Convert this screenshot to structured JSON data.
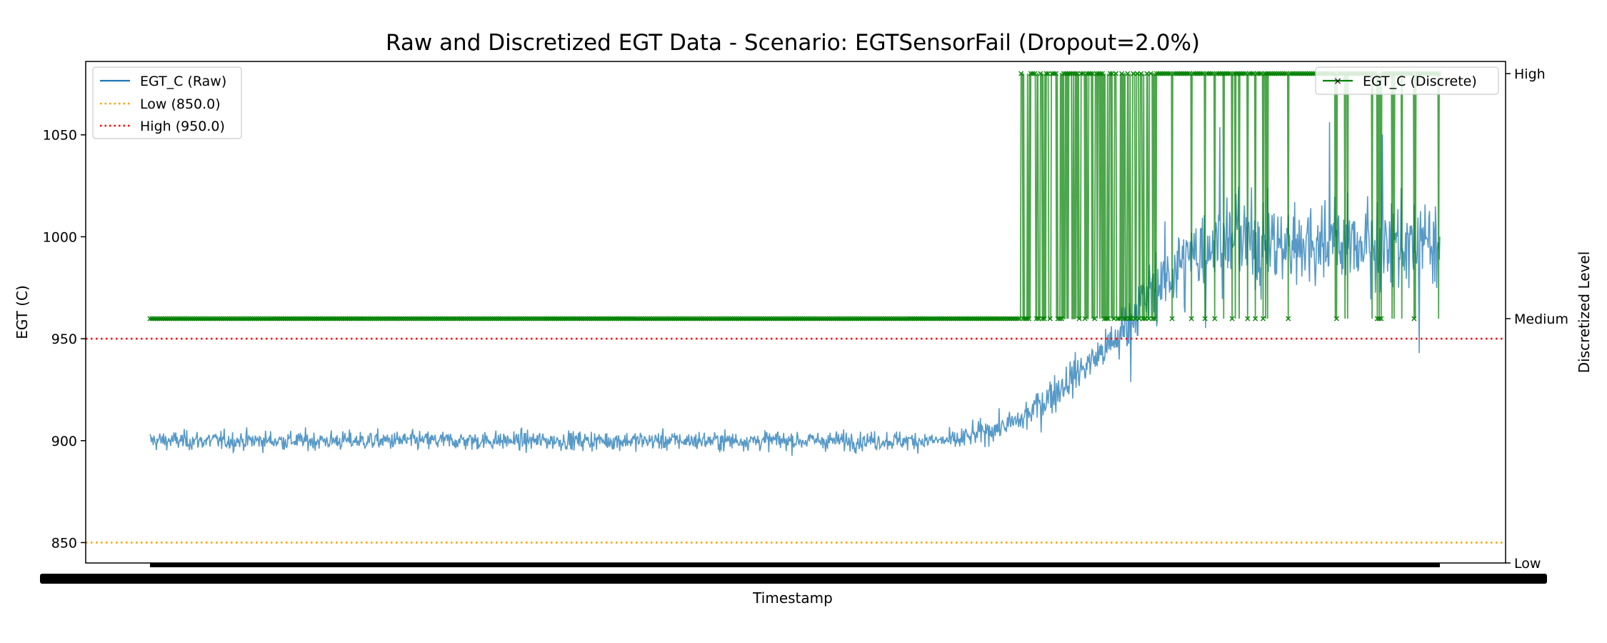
{
  "chart_data": {
    "type": "line",
    "title": "Raw and Discretized EGT Data - Scenario: EGTSensorFail (Dropout=2.0%)",
    "xlabel": "Timestamp",
    "ylabel": "EGT (C)",
    "y2label": "Discretized Level",
    "ylim": [
      840,
      1086
    ],
    "yticks": [
      850,
      900,
      950,
      1000,
      1050
    ],
    "y2ticks": [
      "Low",
      "Medium",
      "High"
    ],
    "grid": false,
    "legend_left": {
      "placement": "upper left",
      "entries": [
        {
          "label": "EGT_C (Raw)",
          "color": "#1f77b4",
          "style": "solid"
        },
        {
          "label": "Low (850.0)",
          "color": "#ff9f00",
          "style": "dotted"
        },
        {
          "label": "High (950.0)",
          "color": "#ff0000",
          "style": "dotted"
        }
      ]
    },
    "legend_right": {
      "placement": "upper right",
      "entries": [
        {
          "label": "EGT_C (Discrete)",
          "color": "#008000",
          "style": "solid",
          "marker": "x"
        }
      ]
    },
    "thresholds": [
      {
        "name": "Low (850.0)",
        "value": 850.0,
        "color": "#ff9f00"
      },
      {
        "name": "High (950.0)",
        "value": 950.0,
        "color": "#ff0000"
      }
    ],
    "x": {
      "n_samples": 2000,
      "tick_labels_overlapping": true
    },
    "series": [
      {
        "name": "EGT_C (Raw)",
        "axis": "left",
        "color": "#1f77b4",
        "segments": [
          {
            "x_from": 0,
            "x_to": 1250,
            "mean_from": 900,
            "mean_to": 900,
            "noise": 4
          },
          {
            "x_from": 1250,
            "x_to": 1350,
            "mean_from": 900,
            "mean_to": 910,
            "noise": 5
          },
          {
            "x_from": 1350,
            "x_to": 1500,
            "mean_from": 910,
            "mean_to": 950,
            "noise": 8
          },
          {
            "x_from": 1500,
            "x_to": 1550,
            "mean_from": 950,
            "mean_to": 975,
            "noise": 12
          },
          {
            "x_from": 1550,
            "x_to": 1650,
            "mean_from": 975,
            "mean_to": 998,
            "noise": 16
          },
          {
            "x_from": 1650,
            "x_to": 2000,
            "mean_from": 998,
            "mean_to": 995,
            "noise": 18
          }
        ]
      },
      {
        "name": "EGT_C (Discrete)",
        "axis": "right",
        "color": "#008000",
        "levels": [
          "Low",
          "Medium",
          "High"
        ],
        "segments": [
          {
            "x_from": 0,
            "x_to": 1350,
            "level": "Medium"
          },
          {
            "x_from": 1350,
            "x_to": 1560,
            "level": "Medium/High mixed"
          },
          {
            "x_from": 1560,
            "x_to": 2000,
            "level": "High",
            "occasional": "Medium"
          }
        ]
      }
    ]
  }
}
